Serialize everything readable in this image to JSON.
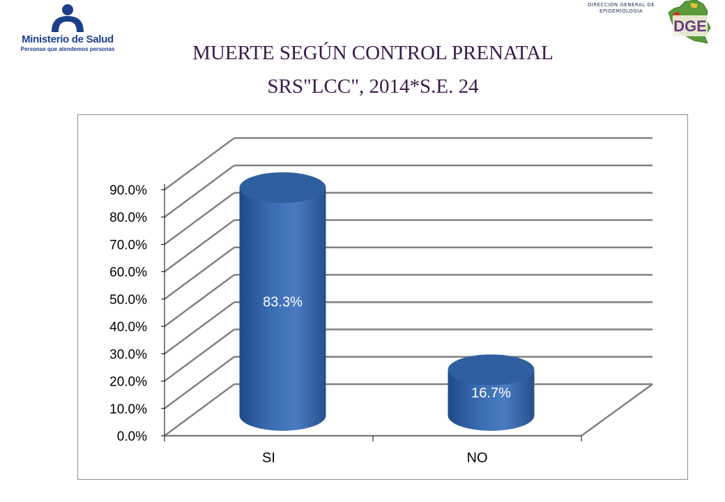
{
  "header": {
    "ministry_name": "Ministerio de Salud",
    "ministry_tagline": "Personas que atendemos personas",
    "directorate_line1": "DIRECCIÓN GENERAL DE",
    "directorate_line2": "EPIDEMIOLOGIA",
    "dge_logo_letters": "DGE"
  },
  "title": {
    "line1": "MUERTE SEGÚN CONTROL PRENATAL",
    "line2": "SRS\"LCC\",  2014*S.E. 24"
  },
  "colors": {
    "bar_main": "#3b6db3",
    "bar_dark": "#1f4a8a",
    "bar_top": "#2f5f9f",
    "grid": "#808080",
    "title": "#3b1a4a"
  },
  "chart_data": {
    "type": "bar",
    "style": "3d-cylinder",
    "categories": [
      "SI",
      "NO"
    ],
    "values": [
      83.3,
      16.7
    ],
    "data_labels": [
      "83.3%",
      "16.7%"
    ],
    "yticks": [
      "0.0%",
      "10.0%",
      "20.0%",
      "30.0%",
      "40.0%",
      "50.0%",
      "60.0%",
      "70.0%",
      "80.0%",
      "90.0%"
    ],
    "ylim": [
      0,
      90
    ],
    "grid": true,
    "legend": "none",
    "title": "",
    "xlabel": "",
    "ylabel": ""
  }
}
